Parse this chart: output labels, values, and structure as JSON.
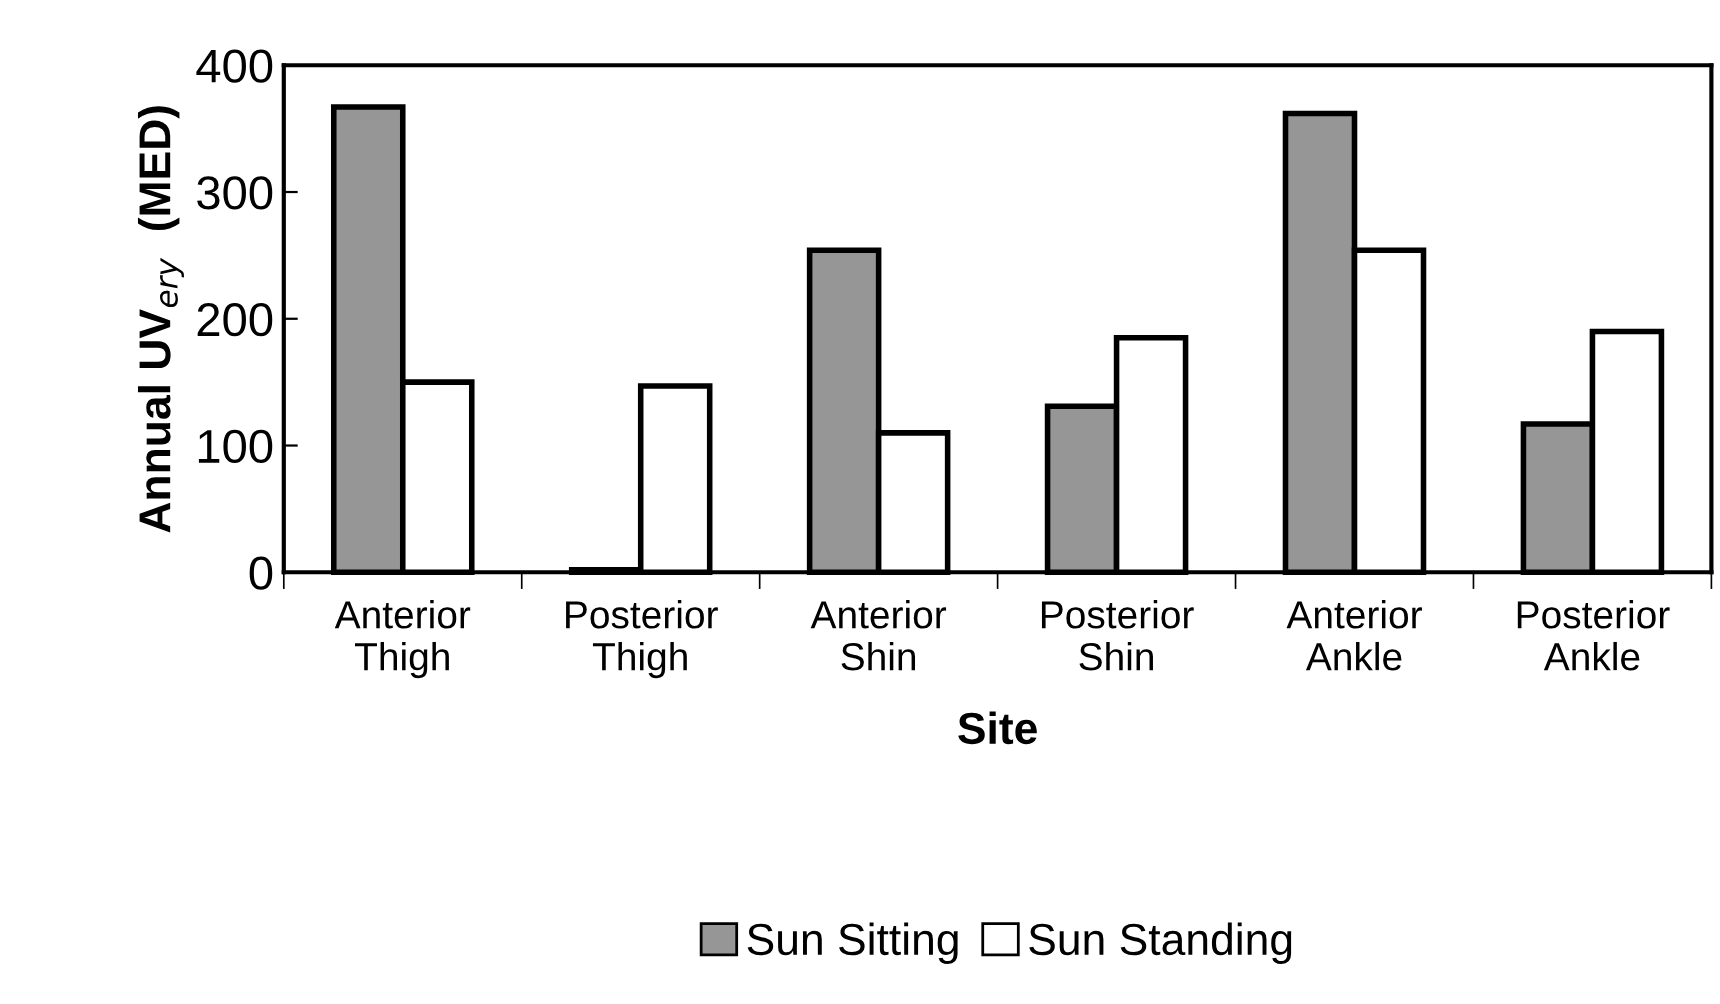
{
  "chart_data": {
    "type": "bar",
    "xlabel": "Site",
    "ylabel": "Annual UV$_{ery}$  (MED)",
    "categories": [
      "Anterior\nThigh",
      "Posterior\nThigh",
      "Anterior\nShin",
      "Posterior\nShin",
      "Anterior\nAnkle",
      "Posterior\nAnkle"
    ],
    "series": [
      {
        "name": "Sun Sitting",
        "color": "#969696",
        "values": [
          367,
          2,
          254,
          131,
          362,
          117
        ]
      },
      {
        "name": "Sun Standing",
        "color": "#ffffff",
        "values": [
          150,
          147,
          110,
          185,
          254,
          190
        ]
      }
    ],
    "ylim": [
      0,
      400
    ],
    "yticks": [
      0,
      100,
      200,
      300,
      400
    ],
    "grid": false,
    "legend": "bottom"
  }
}
